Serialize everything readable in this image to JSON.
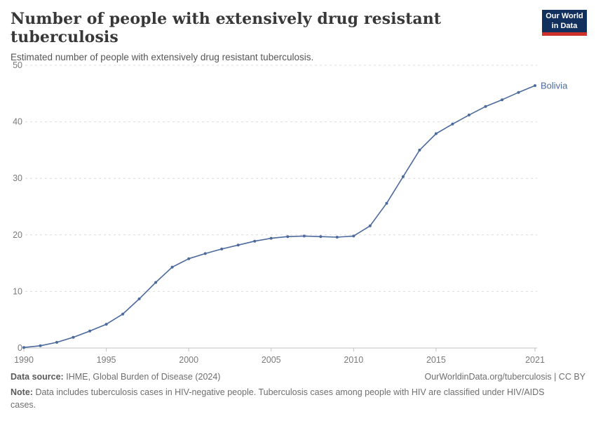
{
  "header": {
    "title": "Number of people with extensively drug resistant tuberculosis",
    "subtitle": "Estimated number of people with extensively drug resistant tuberculosis.",
    "logo": {
      "line1": "Our World",
      "line2": "in Data"
    }
  },
  "chart_data": {
    "type": "line",
    "title": "Number of people with extensively drug resistant tuberculosis",
    "xlabel": "",
    "ylabel": "",
    "xlim": [
      1990,
      2021
    ],
    "ylim": [
      0,
      50
    ],
    "x_ticks": [
      1990,
      1995,
      2000,
      2005,
      2010,
      2015,
      2021
    ],
    "y_ticks": [
      0,
      10,
      20,
      30,
      40,
      50
    ],
    "grid": "horizontal-dashed",
    "legend_position": "end-of-line-label",
    "series": [
      {
        "name": "Bolivia",
        "color": "#4c6a9c",
        "x": [
          1990,
          1991,
          1992,
          1993,
          1994,
          1995,
          1996,
          1997,
          1998,
          1999,
          2000,
          2001,
          2002,
          2003,
          2004,
          2005,
          2006,
          2007,
          2008,
          2009,
          2010,
          2011,
          2012,
          2013,
          2014,
          2015,
          2016,
          2017,
          2018,
          2019,
          2020,
          2021
        ],
        "values": [
          0.1,
          0.4,
          1.0,
          1.9,
          3.0,
          4.2,
          6.0,
          8.7,
          11.6,
          14.3,
          15.8,
          16.7,
          17.5,
          18.2,
          18.9,
          19.4,
          19.7,
          19.8,
          19.7,
          19.6,
          19.8,
          21.6,
          25.6,
          30.3,
          35.0,
          37.9,
          39.6,
          41.2,
          42.7,
          43.9,
          45.2,
          46.4
        ]
      }
    ],
    "colors": {
      "line": "#4c6a9c",
      "gridline": "#dcdcdc",
      "axis_line": "#c2c2c2",
      "tick_label": "#7a7a7a"
    }
  },
  "footer": {
    "source_label": "Data source:",
    "source_text": "IHME, Global Burden of Disease (2024)",
    "rights": "OurWorldinData.org/tuberculosis | CC BY",
    "note_label": "Note:",
    "note_text": "Data includes tuberculosis cases in HIV-negative people. Tuberculosis cases among people with HIV are classified under HIV/AIDS cases."
  }
}
